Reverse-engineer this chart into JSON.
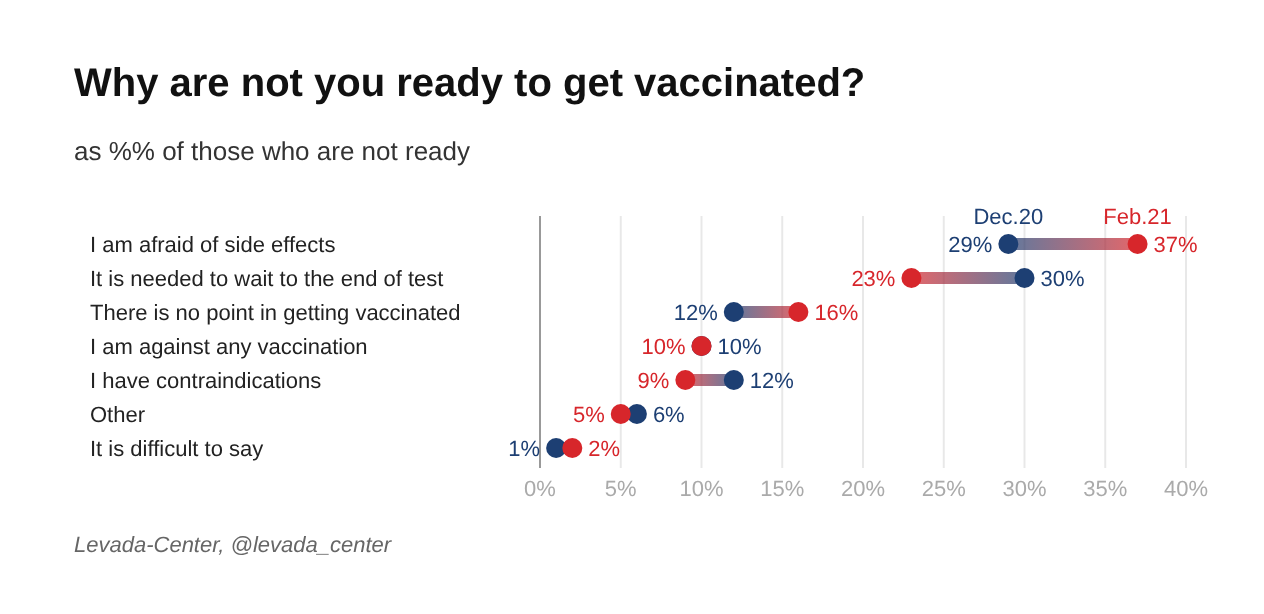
{
  "chart_data": {
    "type": "scatter",
    "orientation": "horizontal",
    "title": "Why are not you ready to get vaccinated?",
    "subtitle": "as %% of those who are not ready",
    "categories": [
      "I am afraid of side effects",
      "It is needed to wait to the end of test",
      "There is no point in getting vaccinated",
      "I am against any vaccination",
      "I have contraindications",
      "Other",
      "It is difficult to say"
    ],
    "series": [
      {
        "name": "Dec.20",
        "color": "#1d3f73",
        "values": [
          29,
          30,
          12,
          10,
          12,
          6,
          1
        ],
        "value_labels": [
          "29%",
          "30%",
          "12%",
          "10%",
          "12%",
          "6%",
          "1%"
        ]
      },
      {
        "name": "Feb.21",
        "color": "#d7262b",
        "values": [
          37,
          23,
          16,
          10,
          9,
          5,
          2
        ],
        "value_labels": [
          "37%",
          "23%",
          "16%",
          "10%",
          "9%",
          "5%",
          "2%"
        ]
      }
    ],
    "xlim": [
      0,
      40
    ],
    "xticks": [
      {
        "value": 0,
        "label": "0%"
      },
      {
        "value": 5,
        "label": "5%"
      },
      {
        "value": 10,
        "label": "10%"
      },
      {
        "value": 15,
        "label": "15%"
      },
      {
        "value": 20,
        "label": "20%"
      },
      {
        "value": 25,
        "label": "25%"
      },
      {
        "value": 30,
        "label": "30%"
      },
      {
        "value": 35,
        "label": "35%"
      },
      {
        "value": 40,
        "label": "40%"
      }
    ],
    "grid": "x",
    "marker": "circle",
    "annotations": [
      "Levada-Center, @levada_center"
    ]
  }
}
